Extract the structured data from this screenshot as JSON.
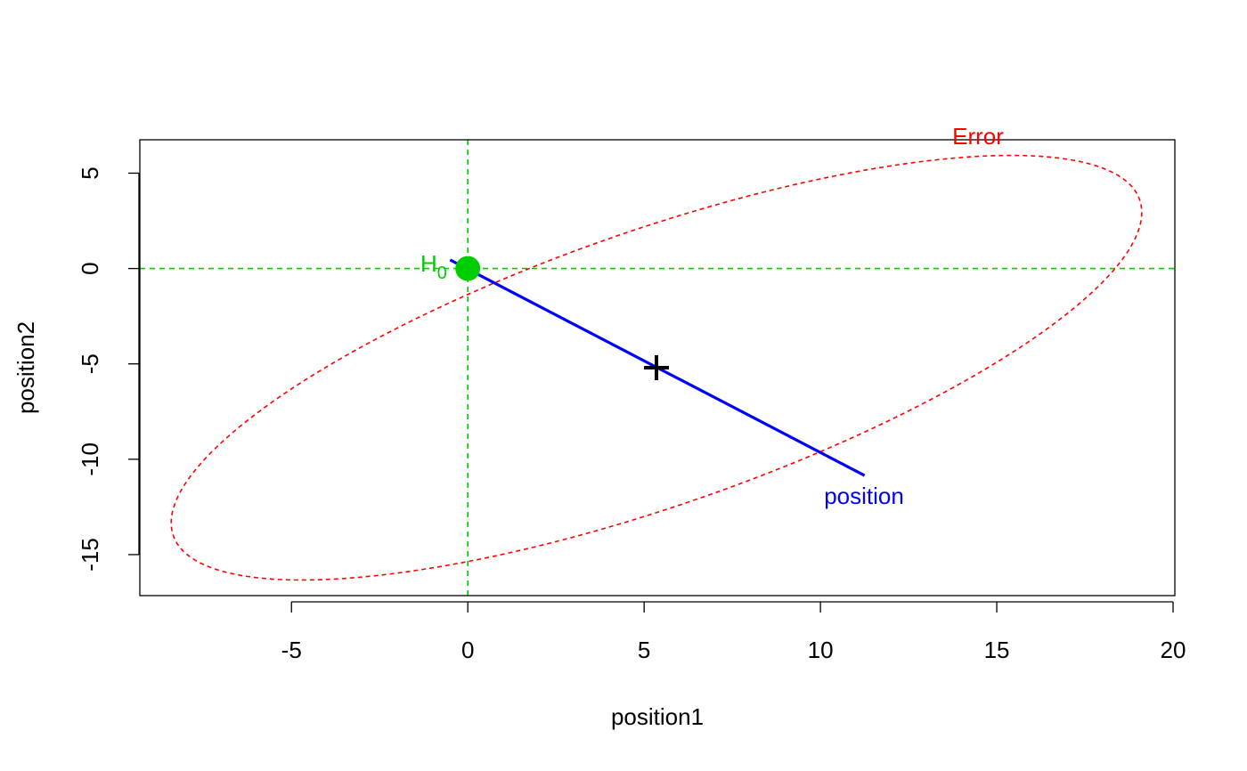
{
  "chart_data": {
    "type": "scatter",
    "title": "",
    "xlabel": "position1",
    "ylabel": "position2",
    "xlim": [
      -9.3,
      20.05
    ],
    "ylim": [
      -17.15,
      6.75
    ],
    "x_ticks": [
      -5,
      0,
      5,
      10,
      15,
      20
    ],
    "y_ticks": [
      -15,
      -10,
      -5,
      0,
      5
    ],
    "x_tick_labels": [
      "-5",
      "0",
      "5",
      "10",
      "15",
      "20"
    ],
    "y_tick_labels": [
      "-15",
      "-10",
      "-5",
      "0",
      "5"
    ],
    "grid": false,
    "reference_lines": {
      "x": 0,
      "y": 0,
      "color": "#00cd00",
      "style": "dashed"
    },
    "hypothesis_point": {
      "x": 0,
      "y": 0,
      "label": "H",
      "subscript": "0",
      "color": "#00cd00"
    },
    "mean_point": {
      "x": 5.35,
      "y": -5.2,
      "marker": "+",
      "color": "#000000"
    },
    "error_ellipse": {
      "label": "Error",
      "color": "#ff0000",
      "style": "dashed",
      "center": [
        5.35,
        -5.2
      ],
      "extreme_points": [
        {
          "x": 19.0,
          "y": 1.9
        },
        {
          "x": -8.3,
          "y": -12.3
        },
        {
          "x": 14.2,
          "y": 5.85
        },
        {
          "x": -3.5,
          "y": -16.25
        }
      ]
    },
    "effect_line": {
      "label": "position",
      "color": "#0000ff",
      "from": {
        "x": -0.5,
        "y": 0.45
      },
      "to": {
        "x": 11.25,
        "y": -10.85
      }
    }
  }
}
